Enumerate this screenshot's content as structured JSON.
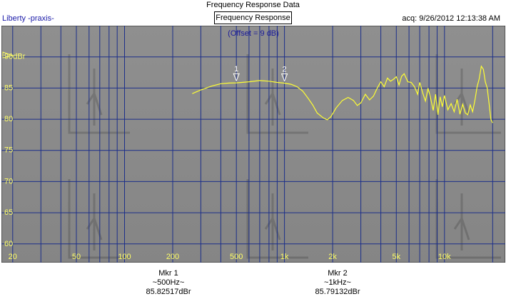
{
  "window": {
    "title": "Frequency Response Data"
  },
  "header": {
    "source": "Liberty -praxis-",
    "tab_label": "Frequency Response",
    "acquired": "acq: 9/26/2012 12:13:38 AM"
  },
  "plot": {
    "offset_label": "(Offset = 9 dB)",
    "background_color": "#8a8a8a",
    "grid_color": "#1c2f8a",
    "trace_color": "#ffff33",
    "label_color": "#ffff66"
  },
  "chart_data": {
    "type": "line",
    "x_scale": "log",
    "xlim": [
      17,
      24000
    ],
    "ylim": [
      57,
      95
    ],
    "x_ticks": [
      {
        "value": 20,
        "label": "20"
      },
      {
        "value": 50,
        "label": "50"
      },
      {
        "value": 100,
        "label": "100"
      },
      {
        "value": 200,
        "label": "200"
      },
      {
        "value": 500,
        "label": "500"
      },
      {
        "value": 1000,
        "label": "1k"
      },
      {
        "value": 2000,
        "label": "2k"
      },
      {
        "value": 5000,
        "label": "5k"
      },
      {
        "value": 10000,
        "label": "10k"
      }
    ],
    "y_ticks": [
      {
        "value": 90,
        "label": "90dBr"
      },
      {
        "value": 85,
        "label": "85"
      },
      {
        "value": 80,
        "label": "80"
      },
      {
        "value": 75,
        "label": "75"
      },
      {
        "value": 70,
        "label": "70"
      },
      {
        "value": 65,
        "label": "65"
      },
      {
        "value": 60,
        "label": "60"
      }
    ],
    "grid": true,
    "series": [
      {
        "points": [
          [
            265,
            84.1
          ],
          [
            300,
            84.7
          ],
          [
            350,
            85.3
          ],
          [
            400,
            85.7
          ],
          [
            450,
            85.8
          ],
          [
            500,
            85.83
          ],
          [
            600,
            86.0
          ],
          [
            700,
            86.2
          ],
          [
            800,
            86.1
          ],
          [
            900,
            85.9
          ],
          [
            1000,
            85.79
          ],
          [
            1100,
            85.6
          ],
          [
            1200,
            85.2
          ],
          [
            1300,
            84.5
          ],
          [
            1400,
            83.4
          ],
          [
            1500,
            82.3
          ],
          [
            1600,
            81.0
          ],
          [
            1750,
            80.2
          ],
          [
            1850,
            79.9
          ],
          [
            1950,
            80.4
          ],
          [
            2100,
            81.8
          ],
          [
            2300,
            83.0
          ],
          [
            2500,
            83.5
          ],
          [
            2700,
            83.0
          ],
          [
            2850,
            82.2
          ],
          [
            3000,
            82.6
          ],
          [
            3200,
            84.0
          ],
          [
            3400,
            83.1
          ],
          [
            3600,
            83.7
          ],
          [
            3800,
            85.0
          ],
          [
            4000,
            86.0
          ],
          [
            4200,
            85.2
          ],
          [
            4400,
            86.6
          ],
          [
            4600,
            86.1
          ],
          [
            4800,
            86.4
          ],
          [
            5000,
            86.8
          ],
          [
            5200,
            85.5
          ],
          [
            5400,
            86.9
          ],
          [
            5600,
            87.3
          ],
          [
            5900,
            86.0
          ],
          [
            6200,
            85.9
          ],
          [
            6500,
            85.2
          ],
          [
            6800,
            84.0
          ],
          [
            7000,
            85.9
          ],
          [
            7300,
            84.3
          ],
          [
            7600,
            82.9
          ],
          [
            7900,
            85.0
          ],
          [
            8200,
            83.3
          ],
          [
            8500,
            81.4
          ],
          [
            8800,
            84.0
          ],
          [
            9100,
            80.7
          ],
          [
            9400,
            83.6
          ],
          [
            9700,
            82.0
          ],
          [
            10000,
            83.8
          ],
          [
            10500,
            81.5
          ],
          [
            11000,
            82.5
          ],
          [
            11500,
            81.2
          ],
          [
            12000,
            83.2
          ],
          [
            12500,
            80.8
          ],
          [
            13000,
            82.4
          ],
          [
            13500,
            81.0
          ],
          [
            14000,
            80.7
          ],
          [
            14500,
            82.3
          ],
          [
            15000,
            81.2
          ],
          [
            15500,
            83.0
          ],
          [
            16000,
            85.2
          ],
          [
            16500,
            86.5
          ],
          [
            17000,
            88.5
          ],
          [
            17500,
            88.0
          ],
          [
            18000,
            86.0
          ],
          [
            18500,
            85.0
          ],
          [
            19000,
            82.5
          ],
          [
            19500,
            80.0
          ],
          [
            20000,
            79.4
          ]
        ]
      }
    ],
    "markers": [
      {
        "id": "1",
        "freq": 500,
        "dbr": 85.82517
      },
      {
        "id": "2",
        "freq": 1000,
        "dbr": 85.79132
      }
    ]
  },
  "markers_readout": [
    {
      "name": "Mkr 1",
      "freq": "~500Hz~",
      "value": "85.82517dBr"
    },
    {
      "name": "Mkr 2",
      "freq": "~1kHz~",
      "value": "85.79132dBr"
    }
  ]
}
